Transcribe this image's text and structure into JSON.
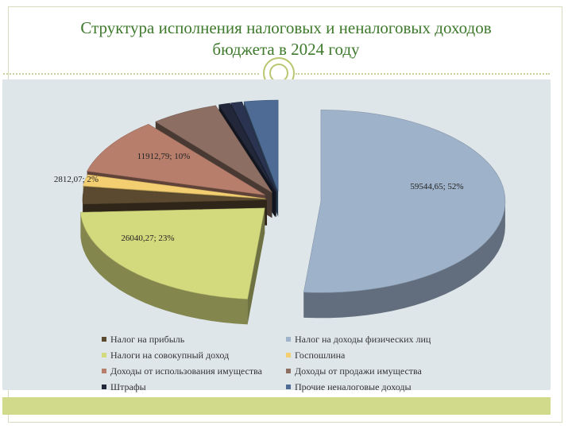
{
  "slide": {
    "title_line1": "Структура исполнения налоговых и неналоговых доходов",
    "title_line2": "бюджета в 2024 году"
  },
  "chart_data": {
    "type": "pie",
    "style": "3d-exploded",
    "legend_position": "bottom",
    "slices": [
      {
        "name": "Налог на доходы физических лиц",
        "value": 59544.65,
        "percent": 52,
        "label": "59544,65; 52%",
        "color": "#9eb2c9",
        "shown_label": true
      },
      {
        "name": "Налоги на совокупный доход",
        "value": 26040.27,
        "percent": 23,
        "label": "26040,27; 23%",
        "color": "#d3d97d",
        "shown_label": true
      },
      {
        "name": "Налог на прибыль",
        "value": null,
        "percent": 3,
        "label": "",
        "color": "#5b4a30",
        "shown_label": false
      },
      {
        "name": "Госпошлина",
        "value": 2812.07,
        "percent": 2,
        "label": "2812,07; 2%",
        "color": "#f3cf72",
        "shown_label": true
      },
      {
        "name": "Доходы от использования имущества",
        "value": 11912.79,
        "percent": 10,
        "label": "11912,79; 10%",
        "color": "#b77e6c",
        "shown_label": true
      },
      {
        "name": "Доходы от продажи имущества",
        "value": null,
        "percent": 6,
        "label": "",
        "color": "#8c6e63",
        "shown_label": false
      },
      {
        "name": "Штрафы",
        "value": null,
        "percent": 1,
        "label": "",
        "color": "#22283a",
        "shown_label": false
      },
      {
        "name": "Прочие неналоговые доходы",
        "value": null,
        "percent": 1,
        "label": "",
        "color": "#2a3450",
        "shown_label": false
      },
      {
        "name": "Прочие неналоговые доходы",
        "value": null,
        "percent": 3,
        "label": "",
        "color": "#4d6b94",
        "shown_label": false
      }
    ],
    "legend": [
      {
        "label": "Налог на прибыль",
        "color": "#5b4a30"
      },
      {
        "label": "Налог на доходы физических лиц",
        "color": "#9eb2c9"
      },
      {
        "label": "Налоги на совокупный доход",
        "color": "#d3d97d"
      },
      {
        "label": "Госпошлина",
        "color": "#f3cf72"
      },
      {
        "label": "Доходы от использования имущества",
        "color": "#b77e6c"
      },
      {
        "label": "Доходы от продажи имущества",
        "color": "#8c6e63"
      },
      {
        "label": "Штрафы",
        "color": "#22283a"
      },
      {
        "label": "Прочие неналоговые доходы",
        "color": "#4d6b94"
      }
    ]
  }
}
